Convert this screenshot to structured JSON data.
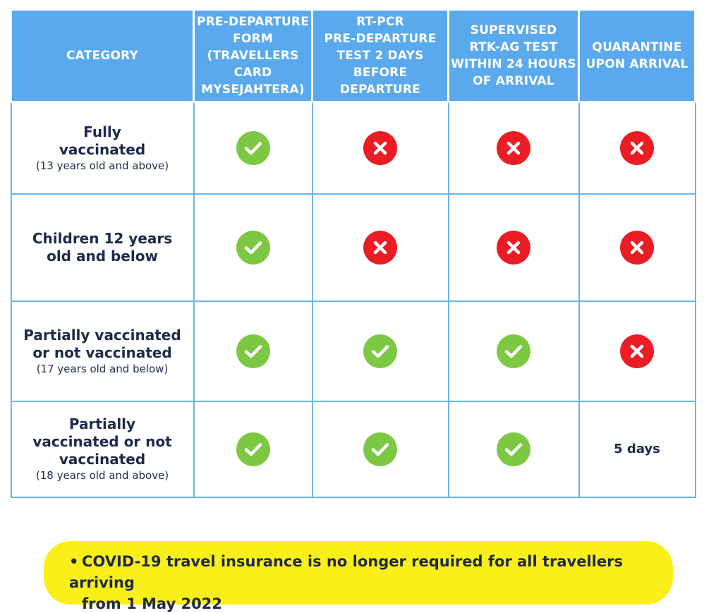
{
  "table": {
    "headers": [
      [
        "CATEGORY"
      ],
      [
        "PRE-DEPARTURE",
        "FORM",
        "(TRAVELLERS",
        "CARD",
        "MYSEJAHTERA)"
      ],
      [
        "RT-PCR",
        "PRE-DEPARTURE",
        "TEST 2 DAYS",
        "BEFORE",
        "DEPARTURE"
      ],
      [
        "SUPERVISED",
        "RTK-AG TEST",
        "WITHIN 24 HOURS",
        "OF ARRIVAL"
      ],
      [
        "QUARANTINE",
        "UPON ARRIVAL"
      ]
    ],
    "rows": [
      {
        "category": [
          "Fully",
          "vaccinated"
        ],
        "note": "(13 years old and above)",
        "cells": [
          "check",
          "cross",
          "cross",
          "cross"
        ]
      },
      {
        "category": [
          "Children 12 years",
          "old and below"
        ],
        "note": "",
        "cells": [
          "check",
          "cross",
          "cross",
          "cross"
        ]
      },
      {
        "category": [
          "Partially vaccinated",
          "or not vaccinated"
        ],
        "note": "(17 years old and below)",
        "cells": [
          "check",
          "check",
          "check",
          "cross"
        ]
      },
      {
        "category": [
          "Partially",
          "vaccinated or not",
          "vaccinated"
        ],
        "note": "(18 years old and above)",
        "cells": [
          "check",
          "check",
          "check",
          "5 days"
        ]
      }
    ]
  },
  "icons": {
    "check": "check-circle-icon",
    "cross": "cross-circle-icon"
  },
  "colors": {
    "header_bg": "#5aa9ec",
    "check_green": "#7dc843",
    "cross_red": "#ea1c24",
    "banner_yellow": "#fbef1a",
    "text_navy": "#1e2a4a"
  },
  "banner": {
    "bullet": "•",
    "lines": [
      "COVID-19 travel insurance is no longer required for all travellers arriving",
      "from 1 May 2022"
    ]
  }
}
